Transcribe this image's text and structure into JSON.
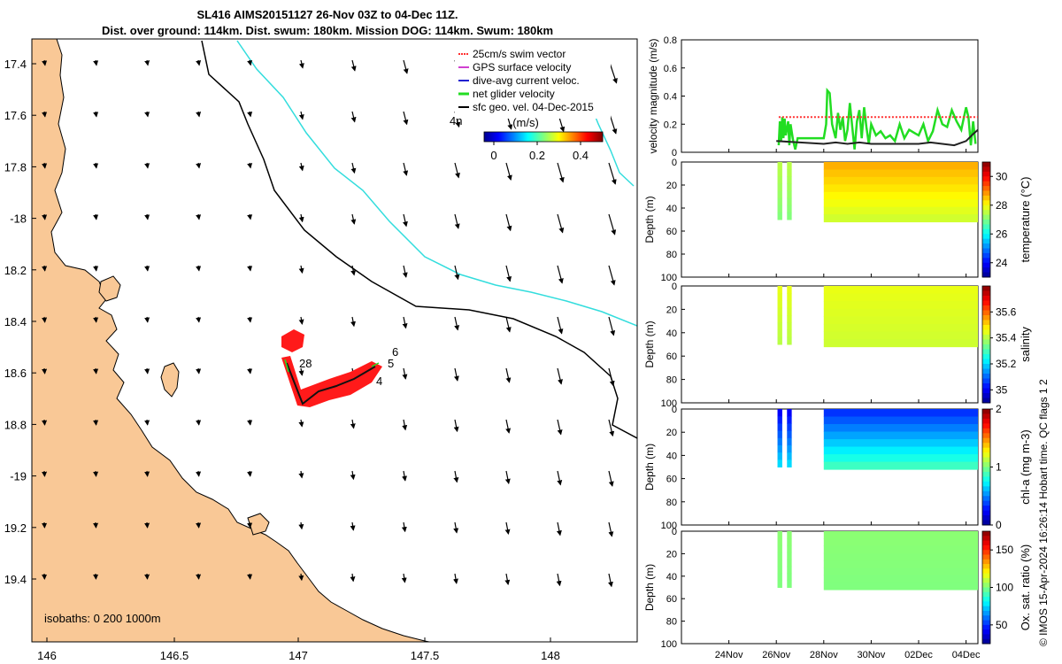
{
  "title": {
    "line1": "SL416 AIMS20151127 26-Nov 03Z to 04-Dec 11Z.",
    "line2": "Dist. over ground: 114km. Dist. swum: 180km. Mission DOG: 114km. Swum: 180km"
  },
  "map": {
    "lon_ticks": [
      "146",
      "146.5",
      "147",
      "147.5",
      "148"
    ],
    "lat_ticks": [
      "17.4",
      "17.6",
      "17.8",
      "-18",
      "18.2",
      "18.4",
      "18.6",
      "18.8",
      "-19",
      "19.2",
      "19.4"
    ],
    "isobaths_label": "isobaths: 0   200  1000m",
    "time_label": "4h",
    "track_labels": [
      "28",
      "6",
      "5",
      "4"
    ],
    "legend": [
      {
        "label": "25cm/s swim vector",
        "color": "#ff3030"
      },
      {
        "label": "GPS surface velocity",
        "color": "#d040d0"
      },
      {
        "label": "dive-avg current veloc.",
        "color": "#2020d0"
      },
      {
        "label": "net glider velocity",
        "color": "#22dd22"
      },
      {
        "label": "sfc geo. vel. 04-Dec-2015",
        "color": "#000000"
      }
    ],
    "colorbar": {
      "label": "(m/s)",
      "ticks": [
        "0",
        "0.2",
        "0.4"
      ]
    },
    "land_color": "#f9c896",
    "isobath_200_color": "#000000",
    "isobath_1000_color": "#33dddd"
  },
  "chart_data": [
    {
      "type": "line",
      "title": "",
      "ylabel": "velocity magnitude (m/s)",
      "ylim": [
        0,
        0.8
      ],
      "yticks": [
        "0",
        "0.2",
        "0.4",
        "0.6",
        "0.8"
      ],
      "x_range_days": [
        22.0,
        34.5
      ],
      "series": [
        {
          "name": "net glider velocity",
          "color": "#22dd22",
          "x": [
            26.1,
            26.15,
            26.2,
            26.25,
            26.3,
            26.35,
            26.4,
            26.5,
            26.55,
            26.6,
            26.7,
            26.8,
            26.9,
            27.2,
            27.5,
            28.0,
            28.1,
            28.15,
            28.25,
            28.35,
            28.5,
            28.6,
            28.7,
            28.8,
            28.9,
            29.0,
            29.1,
            29.2,
            29.3,
            29.4,
            29.5,
            29.6,
            29.7,
            29.8,
            29.9,
            30.0,
            30.2,
            30.4,
            30.6,
            30.8,
            31.0,
            31.2,
            31.4,
            31.6,
            31.8,
            32.0,
            32.2,
            32.4,
            32.6,
            32.8,
            33.0,
            33.2,
            33.4,
            33.6,
            33.8,
            34.0,
            34.1,
            34.2,
            34.3,
            34.4
          ],
          "values": [
            0.05,
            0.22,
            0.08,
            0.25,
            0.1,
            0.24,
            0.12,
            0.22,
            0.05,
            0.2,
            0.09,
            0.02,
            0.1,
            0.1,
            0.1,
            0.1,
            0.2,
            0.44,
            0.42,
            0.2,
            0.1,
            0.28,
            0.16,
            0.25,
            0.08,
            0.16,
            0.35,
            0.18,
            0.02,
            0.22,
            0.3,
            0.1,
            0.32,
            0.18,
            0.06,
            0.2,
            0.12,
            0.15,
            0.1,
            0.12,
            0.08,
            0.2,
            0.1,
            0.16,
            0.14,
            0.12,
            0.2,
            0.08,
            0.15,
            0.3,
            0.2,
            0.18,
            0.3,
            0.22,
            0.16,
            0.32,
            0.25,
            0.05,
            0.22,
            0.06
          ]
        },
        {
          "name": "sfc geo. vel.",
          "color": "#222222",
          "x": [
            26.0,
            27.0,
            28.0,
            28.5,
            29.0,
            29.5,
            30.0,
            30.5,
            31.0,
            31.5,
            32.0,
            32.5,
            33.0,
            33.5,
            34.0,
            34.3,
            34.5
          ],
          "values": [
            0.08,
            0.07,
            0.06,
            0.07,
            0.06,
            0.07,
            0.06,
            0.06,
            0.06,
            0.06,
            0.06,
            0.07,
            0.06,
            0.05,
            0.08,
            0.13,
            0.16
          ]
        },
        {
          "name": "25cm/s swim vector",
          "color": "#ff3030",
          "x": [
            26.1,
            26.8,
            28.2,
            34.5
          ],
          "values": [
            0.25,
            0.25,
            0.25,
            0.25
          ]
        }
      ]
    },
    {
      "type": "heatmap",
      "ylabel": "Depth (m)",
      "variable": "temperature (°C)",
      "ylim": [
        100,
        0
      ],
      "yticks": [
        "0",
        "20",
        "40",
        "60",
        "80",
        "100"
      ],
      "colorbar_range": [
        23,
        31
      ],
      "colorbar_ticks": [
        "24",
        "26",
        "28",
        "30"
      ],
      "segments": [
        {
          "x0": 26.05,
          "x1": 26.25,
          "depth_max": 50,
          "value_top": 27.5,
          "value_bottom": 27.0
        },
        {
          "x0": 26.45,
          "x1": 26.65,
          "depth_max": 50,
          "value_top": 27.5,
          "value_bottom": 27.0
        },
        {
          "x0": 28.0,
          "x1": 34.5,
          "depth_max": 52,
          "value_top": 28.7,
          "value_bottom": 27.6
        }
      ]
    },
    {
      "type": "heatmap",
      "ylabel": "Depth (m)",
      "variable": "salinity",
      "ylim": [
        100,
        0
      ],
      "yticks": [
        "0",
        "20",
        "40",
        "60",
        "80",
        "100"
      ],
      "colorbar_range": [
        34.9,
        35.8
      ],
      "colorbar_ticks": [
        "35",
        "35.2",
        "35.4",
        "35.6"
      ],
      "segments": [
        {
          "x0": 26.05,
          "x1": 26.25,
          "depth_max": 50,
          "value_top": 35.45,
          "value_bottom": 35.4
        },
        {
          "x0": 26.45,
          "x1": 26.65,
          "depth_max": 50,
          "value_top": 35.45,
          "value_bottom": 35.4
        },
        {
          "x0": 28.0,
          "x1": 34.5,
          "depth_max": 52,
          "value_top": 35.45,
          "value_bottom": 35.42
        }
      ]
    },
    {
      "type": "heatmap",
      "ylabel": "Depth (m)",
      "variable": "chl-a (mg m-3)",
      "ylim": [
        100,
        0
      ],
      "yticks": [
        "0",
        "20",
        "40",
        "60",
        "80",
        "100"
      ],
      "colorbar_range": [
        0,
        2
      ],
      "colorbar_ticks": [
        "0",
        "1",
        "2"
      ],
      "segments": [
        {
          "x0": 26.05,
          "x1": 26.25,
          "depth_max": 50,
          "value_top": 0.2,
          "value_bottom": 0.7
        },
        {
          "x0": 26.45,
          "x1": 26.65,
          "depth_max": 50,
          "value_top": 0.2,
          "value_bottom": 0.7
        },
        {
          "x0": 28.0,
          "x1": 34.5,
          "depth_max": 52,
          "value_top": 0.3,
          "value_bottom": 0.9
        }
      ]
    },
    {
      "type": "heatmap",
      "ylabel": "Depth (m)",
      "variable": "Ox. sat. ratio (%)",
      "ylim": [
        100,
        0
      ],
      "yticks": [
        "0",
        "20",
        "40",
        "60",
        "80",
        "100"
      ],
      "colorbar_range": [
        25,
        175
      ],
      "colorbar_ticks": [
        "50",
        "100",
        "150"
      ],
      "segments": [
        {
          "x0": 26.05,
          "x1": 26.25,
          "depth_max": 50,
          "value_top": 102,
          "value_bottom": 100
        },
        {
          "x0": 26.45,
          "x1": 26.65,
          "depth_max": 50,
          "value_top": 102,
          "value_bottom": 100
        },
        {
          "x0": 28.0,
          "x1": 34.5,
          "depth_max": 52,
          "value_top": 102,
          "value_bottom": 100
        }
      ]
    }
  ],
  "time_axis": {
    "labels": [
      "24Nov",
      "26Nov",
      "28Nov",
      "30Nov",
      "02Dec",
      "04Dec"
    ],
    "days": [
      24,
      26,
      28,
      30,
      32,
      34
    ]
  },
  "credit": "© IMOS 15-Apr-2024 16:26:14 Hobart time. QC flags 1  2"
}
